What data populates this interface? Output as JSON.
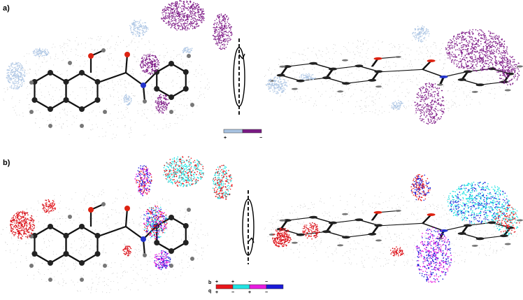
{
  "panels": [
    {
      "label": "a)",
      "legend": {
        "signs": [
          "+",
          "−"
        ]
      }
    },
    {
      "label": "b)",
      "legend": {
        "rows": [
          {
            "name": "b",
            "signs": [
              "+",
              "+",
              "−",
              "−"
            ]
          },
          {
            "name": "q",
            "signs": [
              "+",
              "−",
              "+",
              "−"
            ]
          }
        ]
      }
    }
  ]
}
